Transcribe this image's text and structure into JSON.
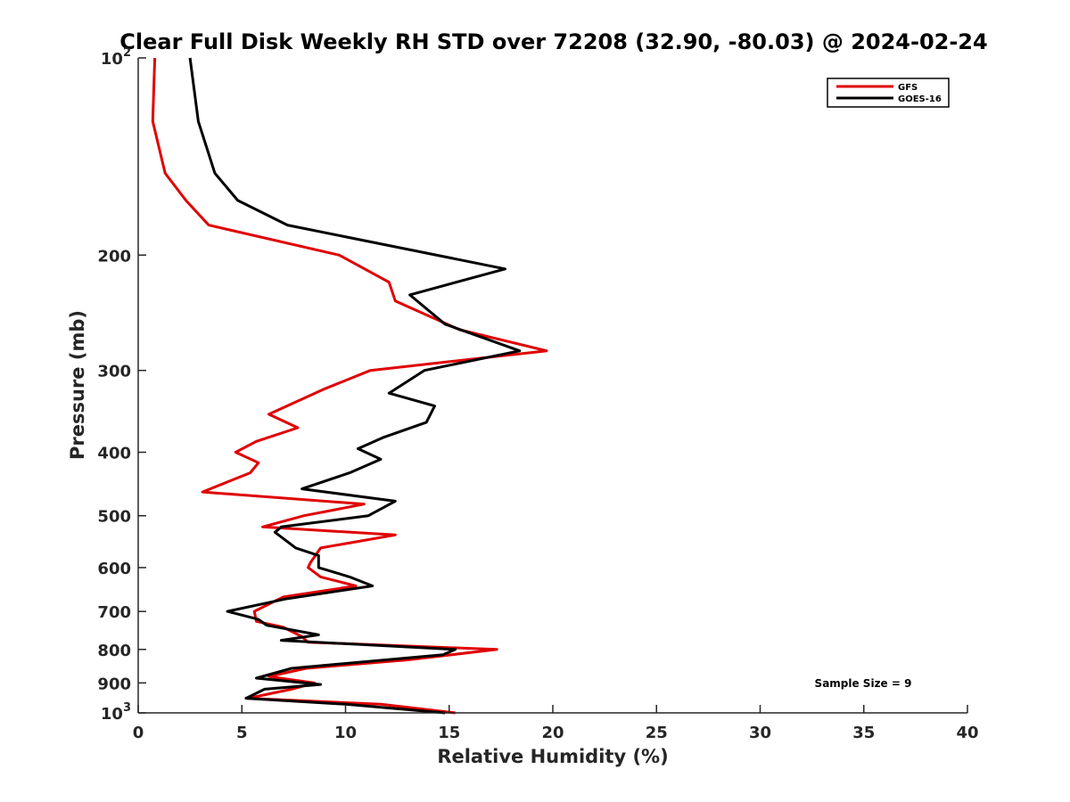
{
  "chart_data": {
    "type": "line",
    "title": "Clear Full Disk Weekly RH STD over 72208 (32.90, -80.03) @ 2024-02-24",
    "xlabel": "Relative Humidity (%)",
    "ylabel": "Pressure (mb)",
    "xlim": [
      0,
      40
    ],
    "ylim": [
      100,
      1000
    ],
    "y_scale": "log",
    "y_reversed": true,
    "x_ticks": [
      "0",
      "5",
      "10",
      "15",
      "20",
      "25",
      "30",
      "35",
      "40"
    ],
    "y_ticks": [
      {
        "value": 100,
        "base": "10",
        "exp": "2"
      },
      {
        "value": 200,
        "label": "200"
      },
      {
        "value": 300,
        "label": "300"
      },
      {
        "value": 400,
        "label": "400"
      },
      {
        "value": 500,
        "label": "500"
      },
      {
        "value": 600,
        "label": "600"
      },
      {
        "value": 700,
        "label": "700"
      },
      {
        "value": 800,
        "label": "800"
      },
      {
        "value": 900,
        "label": "900"
      },
      {
        "value": 1000,
        "base": "10",
        "exp": "3"
      }
    ],
    "legend": "top-right",
    "grid": false,
    "annotation": "Sample Size = 9",
    "series": [
      {
        "name": "GFS",
        "color": "#e00000",
        "points": [
          [
            0.8,
            100
          ],
          [
            0.7,
            125
          ],
          [
            1.3,
            150
          ],
          [
            2.3,
            165
          ],
          [
            3.4,
            180
          ],
          [
            9.7,
            200
          ],
          [
            12.1,
            220
          ],
          [
            12.4,
            235
          ],
          [
            15.5,
            260
          ],
          [
            19.7,
            280
          ],
          [
            11.2,
            300
          ],
          [
            9.0,
            320
          ],
          [
            6.3,
            350
          ],
          [
            7.7,
            367
          ],
          [
            5.7,
            385
          ],
          [
            4.7,
            400
          ],
          [
            5.8,
            415
          ],
          [
            5.4,
            430
          ],
          [
            3.1,
            460
          ],
          [
            10.9,
            480
          ],
          [
            8.0,
            500
          ],
          [
            6.0,
            520
          ],
          [
            12.4,
            535
          ],
          [
            8.8,
            560
          ],
          [
            8.3,
            590
          ],
          [
            8.2,
            600
          ],
          [
            8.8,
            620
          ],
          [
            10.5,
            640
          ],
          [
            7.0,
            665
          ],
          [
            5.6,
            700
          ],
          [
            5.7,
            725
          ],
          [
            7.0,
            740
          ],
          [
            7.9,
            765
          ],
          [
            8.2,
            780
          ],
          [
            17.3,
            800
          ],
          [
            13.0,
            830
          ],
          [
            8.1,
            855
          ],
          [
            6.3,
            880
          ],
          [
            8.5,
            900
          ],
          [
            7.4,
            920
          ],
          [
            5.3,
            950
          ],
          [
            11.7,
            970
          ],
          [
            15.3,
            1000
          ]
        ]
      },
      {
        "name": "GOES-16",
        "color": "#000000",
        "points": [
          [
            2.5,
            100
          ],
          [
            2.9,
            125
          ],
          [
            3.7,
            150
          ],
          [
            4.8,
            165
          ],
          [
            7.2,
            180
          ],
          [
            17.7,
            210
          ],
          [
            13.1,
            230
          ],
          [
            14.8,
            255
          ],
          [
            18.4,
            280
          ],
          [
            13.8,
            300
          ],
          [
            12.1,
            325
          ],
          [
            14.3,
            340
          ],
          [
            13.9,
            360
          ],
          [
            11.8,
            380
          ],
          [
            10.6,
            395
          ],
          [
            11.7,
            410
          ],
          [
            10.2,
            430
          ],
          [
            7.9,
            455
          ],
          [
            12.4,
            475
          ],
          [
            11.1,
            500
          ],
          [
            6.9,
            520
          ],
          [
            6.6,
            530
          ],
          [
            7.6,
            560
          ],
          [
            8.7,
            575
          ],
          [
            8.7,
            600
          ],
          [
            10.2,
            620
          ],
          [
            11.3,
            640
          ],
          [
            7.1,
            670
          ],
          [
            4.3,
            700
          ],
          [
            5.8,
            720
          ],
          [
            6.2,
            735
          ],
          [
            8.7,
            760
          ],
          [
            6.9,
            775
          ],
          [
            15.3,
            800
          ],
          [
            14.7,
            815
          ],
          [
            7.4,
            855
          ],
          [
            5.7,
            885
          ],
          [
            8.8,
            905
          ],
          [
            6.1,
            920
          ],
          [
            5.2,
            950
          ],
          [
            10.0,
            970
          ],
          [
            14.8,
            1000
          ]
        ]
      }
    ]
  }
}
